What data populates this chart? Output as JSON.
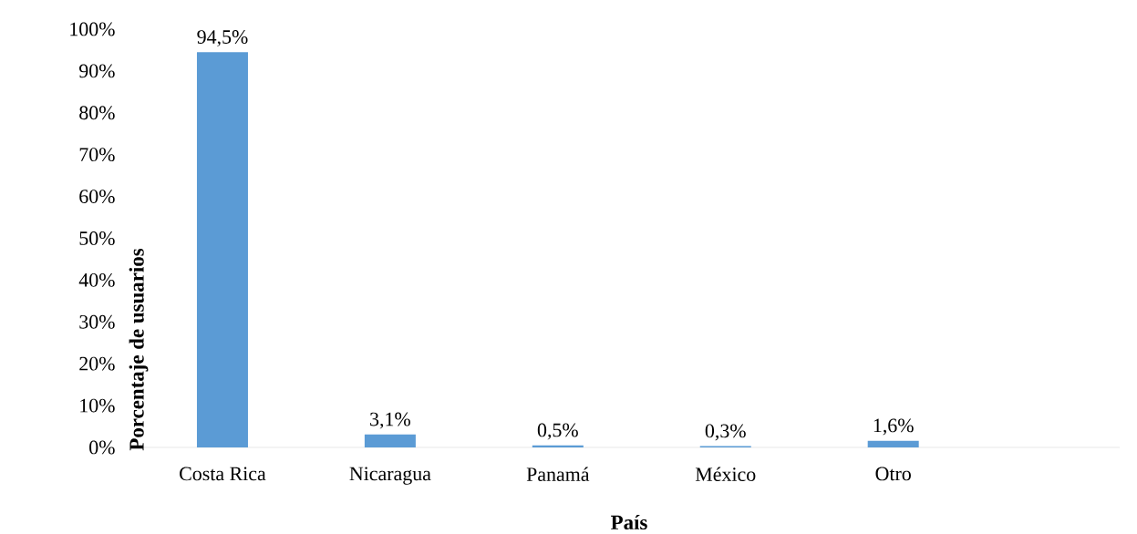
{
  "chart_data": {
    "type": "bar",
    "xlabel": "País",
    "ylabel": "Porcentaje de usuarios",
    "categories": [
      "Costa Rica",
      "Nicaragua",
      "Panamá",
      "México",
      "Otro",
      null
    ],
    "values": [
      94.5,
      3.1,
      0.5,
      0.3,
      1.6,
      null
    ],
    "value_labels": [
      "94,5%",
      "3,1%",
      "0,5%",
      "0,3%",
      "1,6%",
      null
    ],
    "color": "#5b9bd5",
    "ylim": [
      0,
      100
    ],
    "yticks": [
      {
        "value": 0,
        "label": "0%"
      },
      {
        "value": 10,
        "label": "10%"
      },
      {
        "value": 20,
        "label": "20%"
      },
      {
        "value": 30,
        "label": "30%"
      },
      {
        "value": 40,
        "label": "40%"
      },
      {
        "value": 50,
        "label": "50%"
      },
      {
        "value": 60,
        "label": "60%"
      },
      {
        "value": 70,
        "label": "70%"
      },
      {
        "value": 80,
        "label": "80%"
      },
      {
        "value": 90,
        "label": "90%"
      },
      {
        "value": 100,
        "label": "100%"
      }
    ],
    "grid": false
  }
}
